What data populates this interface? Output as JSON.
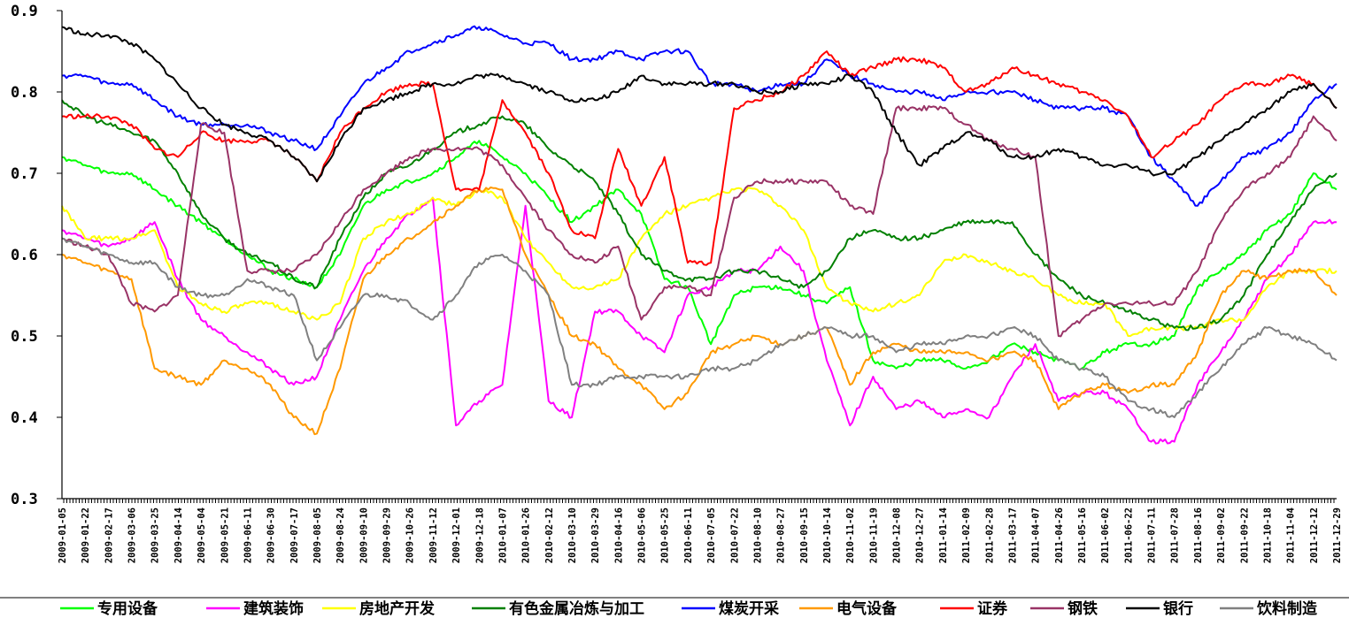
{
  "chart_data": {
    "type": "line",
    "title": "",
    "xlabel": "",
    "ylabel": "",
    "ylim": [
      0.3,
      0.9
    ],
    "yticks": [
      "0.3",
      "0.4",
      "0.5",
      "0.6",
      "0.7",
      "0.8",
      "0.9"
    ],
    "x_tick_labels": [
      "2009-01-05",
      "2009-01-22",
      "2009-02-17",
      "2009-03-06",
      "2009-03-25",
      "2009-04-14",
      "2009-05-04",
      "2009-05-21",
      "2009-06-11",
      "2009-06-30",
      "2009-07-17",
      "2009-08-05",
      "2009-08-24",
      "2009-09-10",
      "2009-09-29",
      "2009-10-26",
      "2009-11-12",
      "2009-12-01",
      "2009-12-18",
      "2010-01-07",
      "2010-01-26",
      "2010-02-12",
      "2010-03-10",
      "2010-03-29",
      "2010-04-16",
      "2010-05-06",
      "2010-05-25",
      "2010-06-11",
      "2010-07-05",
      "2010-07-22",
      "2010-08-10",
      "2010-08-27",
      "2010-09-15",
      "2010-10-14",
      "2010-11-02",
      "2010-11-19",
      "2010-12-08",
      "2010-12-27",
      "2011-01-14",
      "2011-02-09",
      "2011-02-28",
      "2011-03-17",
      "2011-04-07",
      "2011-04-26",
      "2011-05-16",
      "2011-06-02",
      "2011-06-22",
      "2011-07-11",
      "2011-07-28",
      "2011-08-16",
      "2011-09-02",
      "2011-09-22",
      "2011-10-18",
      "2011-11-04",
      "2011-12-12",
      "2011-12-29"
    ],
    "grid": false,
    "legend_position": "bottom",
    "series": [
      {
        "name": "专用设备",
        "color": "#00ff00",
        "values": [
          0.72,
          0.71,
          0.7,
          0.7,
          0.68,
          0.66,
          0.64,
          0.62,
          0.6,
          0.58,
          0.57,
          0.56,
          0.6,
          0.66,
          0.68,
          0.69,
          0.7,
          0.72,
          0.74,
          0.72,
          0.7,
          0.67,
          0.64,
          0.66,
          0.68,
          0.65,
          0.57,
          0.56,
          0.49,
          0.55,
          0.56,
          0.56,
          0.55,
          0.54,
          0.56,
          0.47,
          0.46,
          0.47,
          0.47,
          0.46,
          0.47,
          0.49,
          0.48,
          0.47,
          0.46,
          0.48,
          0.49,
          0.49,
          0.5,
          0.56,
          0.58,
          0.6,
          0.63,
          0.65,
          0.7,
          0.68
        ]
      },
      {
        "name": "建筑装饰",
        "color": "#ff00ff",
        "values": [
          0.63,
          0.62,
          0.61,
          0.62,
          0.64,
          0.57,
          0.52,
          0.5,
          0.48,
          0.46,
          0.44,
          0.45,
          0.52,
          0.58,
          0.62,
          0.65,
          0.67,
          0.39,
          0.42,
          0.44,
          0.66,
          0.42,
          0.4,
          0.53,
          0.53,
          0.5,
          0.48,
          0.55,
          0.56,
          0.58,
          0.58,
          0.61,
          0.58,
          0.47,
          0.39,
          0.45,
          0.41,
          0.42,
          0.4,
          0.41,
          0.4,
          0.45,
          0.49,
          0.42,
          0.43,
          0.43,
          0.41,
          0.37,
          0.37,
          0.44,
          0.48,
          0.52,
          0.57,
          0.6,
          0.64,
          0.64
        ]
      },
      {
        "name": "房地产开发",
        "color": "#ffff00",
        "values": [
          0.66,
          0.62,
          0.62,
          0.62,
          0.63,
          0.56,
          0.54,
          0.53,
          0.54,
          0.54,
          0.53,
          0.52,
          0.54,
          0.62,
          0.64,
          0.65,
          0.67,
          0.66,
          0.68,
          0.67,
          0.62,
          0.59,
          0.56,
          0.56,
          0.57,
          0.62,
          0.65,
          0.66,
          0.67,
          0.68,
          0.68,
          0.66,
          0.63,
          0.56,
          0.54,
          0.53,
          0.54,
          0.55,
          0.59,
          0.6,
          0.59,
          0.58,
          0.57,
          0.55,
          0.54,
          0.54,
          0.5,
          0.51,
          0.51,
          0.51,
          0.52,
          0.52,
          0.56,
          0.58,
          0.58,
          0.58
        ]
      },
      {
        "name": "有色金属冶炼与加工",
        "color": "#008000",
        "values": [
          0.79,
          0.77,
          0.76,
          0.75,
          0.74,
          0.7,
          0.65,
          0.62,
          0.6,
          0.59,
          0.57,
          0.56,
          0.62,
          0.67,
          0.7,
          0.71,
          0.73,
          0.75,
          0.76,
          0.77,
          0.76,
          0.73,
          0.71,
          0.69,
          0.65,
          0.6,
          0.58,
          0.57,
          0.57,
          0.58,
          0.58,
          0.57,
          0.56,
          0.58,
          0.62,
          0.63,
          0.62,
          0.62,
          0.63,
          0.64,
          0.64,
          0.64,
          0.6,
          0.57,
          0.55,
          0.54,
          0.53,
          0.52,
          0.51,
          0.51,
          0.52,
          0.55,
          0.6,
          0.64,
          0.68,
          0.7
        ]
      },
      {
        "name": "煤炭开采",
        "color": "#0000ff",
        "values": [
          0.82,
          0.82,
          0.81,
          0.81,
          0.79,
          0.77,
          0.76,
          0.76,
          0.76,
          0.75,
          0.74,
          0.73,
          0.77,
          0.81,
          0.83,
          0.85,
          0.86,
          0.87,
          0.88,
          0.87,
          0.86,
          0.86,
          0.84,
          0.84,
          0.85,
          0.84,
          0.85,
          0.85,
          0.81,
          0.81,
          0.8,
          0.81,
          0.81,
          0.84,
          0.82,
          0.81,
          0.8,
          0.8,
          0.79,
          0.8,
          0.8,
          0.8,
          0.79,
          0.78,
          0.78,
          0.78,
          0.77,
          0.72,
          0.69,
          0.66,
          0.69,
          0.72,
          0.73,
          0.75,
          0.79,
          0.81
        ]
      },
      {
        "name": "电气设备",
        "color": "#ff9900",
        "values": [
          0.6,
          0.59,
          0.58,
          0.57,
          0.46,
          0.45,
          0.44,
          0.47,
          0.46,
          0.44,
          0.4,
          0.38,
          0.46,
          0.57,
          0.6,
          0.62,
          0.64,
          0.66,
          0.68,
          0.68,
          0.6,
          0.55,
          0.5,
          0.49,
          0.46,
          0.44,
          0.41,
          0.43,
          0.48,
          0.49,
          0.5,
          0.49,
          0.5,
          0.51,
          0.44,
          0.48,
          0.49,
          0.48,
          0.48,
          0.48,
          0.47,
          0.48,
          0.47,
          0.41,
          0.43,
          0.44,
          0.43,
          0.44,
          0.44,
          0.48,
          0.55,
          0.58,
          0.57,
          0.58,
          0.58,
          0.55
        ]
      },
      {
        "name": "证券",
        "color": "#ff0000",
        "values": [
          0.77,
          0.77,
          0.77,
          0.76,
          0.73,
          0.72,
          0.75,
          0.74,
          0.74,
          0.74,
          0.72,
          0.69,
          0.75,
          0.78,
          0.8,
          0.81,
          0.81,
          0.68,
          0.68,
          0.79,
          0.75,
          0.7,
          0.63,
          0.62,
          0.73,
          0.66,
          0.72,
          0.59,
          0.59,
          0.78,
          0.79,
          0.8,
          0.82,
          0.85,
          0.82,
          0.83,
          0.84,
          0.84,
          0.83,
          0.8,
          0.81,
          0.83,
          0.82,
          0.81,
          0.8,
          0.79,
          0.77,
          0.72,
          0.74,
          0.76,
          0.79,
          0.81,
          0.81,
          0.82,
          0.81,
          0.78
        ]
      },
      {
        "name": "钢铁",
        "color": "#993366",
        "values": [
          0.62,
          0.61,
          0.6,
          0.54,
          0.53,
          0.55,
          0.76,
          0.75,
          0.58,
          0.58,
          0.58,
          0.6,
          0.64,
          0.68,
          0.7,
          0.72,
          0.73,
          0.73,
          0.73,
          0.71,
          0.67,
          0.63,
          0.6,
          0.59,
          0.61,
          0.52,
          0.56,
          0.56,
          0.55,
          0.67,
          0.69,
          0.69,
          0.69,
          0.69,
          0.66,
          0.65,
          0.78,
          0.78,
          0.78,
          0.76,
          0.74,
          0.73,
          0.72,
          0.5,
          0.52,
          0.54,
          0.54,
          0.54,
          0.54,
          0.58,
          0.64,
          0.68,
          0.7,
          0.72,
          0.77,
          0.74
        ]
      },
      {
        "name": "银行",
        "color": "#000000",
        "values": [
          0.88,
          0.87,
          0.87,
          0.86,
          0.84,
          0.81,
          0.78,
          0.76,
          0.75,
          0.74,
          0.72,
          0.69,
          0.74,
          0.78,
          0.79,
          0.8,
          0.81,
          0.81,
          0.82,
          0.82,
          0.81,
          0.8,
          0.79,
          0.79,
          0.8,
          0.82,
          0.81,
          0.81,
          0.81,
          0.81,
          0.8,
          0.8,
          0.81,
          0.81,
          0.82,
          0.8,
          0.75,
          0.71,
          0.73,
          0.75,
          0.74,
          0.72,
          0.72,
          0.73,
          0.72,
          0.71,
          0.71,
          0.7,
          0.7,
          0.72,
          0.74,
          0.76,
          0.78,
          0.8,
          0.81,
          0.78
        ]
      },
      {
        "name": "饮料制造",
        "color": "#808080",
        "values": [
          0.62,
          0.61,
          0.6,
          0.59,
          0.59,
          0.56,
          0.55,
          0.55,
          0.57,
          0.56,
          0.55,
          0.47,
          0.51,
          0.55,
          0.55,
          0.54,
          0.52,
          0.55,
          0.59,
          0.6,
          0.58,
          0.55,
          0.44,
          0.44,
          0.45,
          0.45,
          0.45,
          0.45,
          0.46,
          0.46,
          0.47,
          0.49,
          0.5,
          0.51,
          0.5,
          0.5,
          0.48,
          0.49,
          0.49,
          0.5,
          0.5,
          0.51,
          0.5,
          0.47,
          0.46,
          0.45,
          0.42,
          0.41,
          0.4,
          0.43,
          0.46,
          0.49,
          0.51,
          0.5,
          0.49,
          0.47
        ]
      }
    ]
  }
}
